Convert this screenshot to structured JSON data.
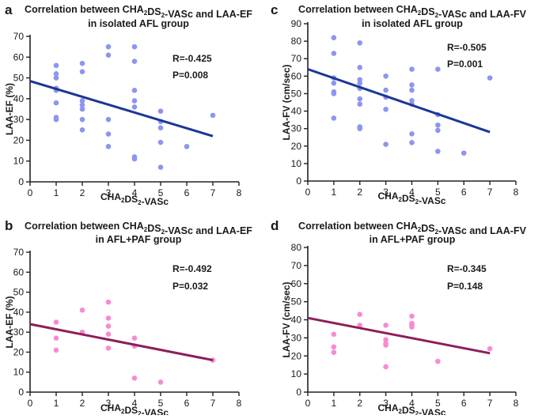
{
  "chart_data": [
    {
      "panel": "a",
      "type": "scatter",
      "title_line1": "Correlation between CHA2DS2-VASc and LAA-EF",
      "title_line2": "in isolated AFL group",
      "xlabel": "CHA2DS2-VASc",
      "ylabel": "LAA-EF (%)",
      "xlim": [
        0,
        8
      ],
      "ylim": [
        0,
        70
      ],
      "xticks": [
        0,
        1,
        2,
        3,
        4,
        5,
        6,
        7,
        8
      ],
      "yticks": [
        0,
        10,
        20,
        30,
        40,
        50,
        60,
        70
      ],
      "r_label": "R=-0.425",
      "p_label": "P=0.008",
      "point_color": "#8c96ee",
      "line_color": "#1a3699",
      "fit_line": {
        "x": [
          0,
          7
        ],
        "y": [
          48.5,
          22
        ]
      },
      "points": [
        {
          "x": 1,
          "y": 56
        },
        {
          "x": 1,
          "y": 52
        },
        {
          "x": 1,
          "y": 50
        },
        {
          "x": 1,
          "y": 45
        },
        {
          "x": 1,
          "y": 44
        },
        {
          "x": 1,
          "y": 38
        },
        {
          "x": 1,
          "y": 31
        },
        {
          "x": 1,
          "y": 30
        },
        {
          "x": 2,
          "y": 57
        },
        {
          "x": 2,
          "y": 53
        },
        {
          "x": 2,
          "y": 39
        },
        {
          "x": 2,
          "y": 37
        },
        {
          "x": 2,
          "y": 35
        },
        {
          "x": 2,
          "y": 30
        },
        {
          "x": 2,
          "y": 25
        },
        {
          "x": 3,
          "y": 65
        },
        {
          "x": 3,
          "y": 61
        },
        {
          "x": 3,
          "y": 30
        },
        {
          "x": 3,
          "y": 23
        },
        {
          "x": 3,
          "y": 17
        },
        {
          "x": 4,
          "y": 65
        },
        {
          "x": 4,
          "y": 58
        },
        {
          "x": 4,
          "y": 44
        },
        {
          "x": 4,
          "y": 39
        },
        {
          "x": 4,
          "y": 36
        },
        {
          "x": 4,
          "y": 12
        },
        {
          "x": 4,
          "y": 11
        },
        {
          "x": 5,
          "y": 34
        },
        {
          "x": 5,
          "y": 29
        },
        {
          "x": 5,
          "y": 26
        },
        {
          "x": 5,
          "y": 19
        },
        {
          "x": 5,
          "y": 7
        },
        {
          "x": 6,
          "y": 17
        },
        {
          "x": 7,
          "y": 32
        }
      ]
    },
    {
      "panel": "c",
      "type": "scatter",
      "title_line1": "Correlation between CHA2DS2-VASc and LAA-FV",
      "title_line2": "in isolated AFL group",
      "xlabel": "CHA2DS2-VASc",
      "ylabel": "LAA-FV (cm/sec)",
      "xlim": [
        0,
        8
      ],
      "ylim": [
        0,
        90
      ],
      "xticks": [
        0,
        1,
        2,
        3,
        4,
        5,
        6,
        7,
        8
      ],
      "yticks": [
        0,
        10,
        20,
        30,
        40,
        50,
        60,
        70,
        80,
        90
      ],
      "r_label": "R=-0.505",
      "p_label": "P=0.001",
      "point_color": "#8c96ee",
      "line_color": "#1a3699",
      "fit_line": {
        "x": [
          0,
          7
        ],
        "y": [
          64,
          28
        ]
      },
      "points": [
        {
          "x": 1,
          "y": 82
        },
        {
          "x": 1,
          "y": 73
        },
        {
          "x": 1,
          "y": 59
        },
        {
          "x": 1,
          "y": 56
        },
        {
          "x": 1,
          "y": 51
        },
        {
          "x": 1,
          "y": 50
        },
        {
          "x": 1,
          "y": 36
        },
        {
          "x": 2,
          "y": 79
        },
        {
          "x": 2,
          "y": 65
        },
        {
          "x": 2,
          "y": 58
        },
        {
          "x": 2,
          "y": 56
        },
        {
          "x": 2,
          "y": 53
        },
        {
          "x": 2,
          "y": 47
        },
        {
          "x": 2,
          "y": 44
        },
        {
          "x": 2,
          "y": 31
        },
        {
          "x": 2,
          "y": 30
        },
        {
          "x": 3,
          "y": 60
        },
        {
          "x": 3,
          "y": 52
        },
        {
          "x": 3,
          "y": 48
        },
        {
          "x": 3,
          "y": 41
        },
        {
          "x": 3,
          "y": 21
        },
        {
          "x": 4,
          "y": 64
        },
        {
          "x": 4,
          "y": 55
        },
        {
          "x": 4,
          "y": 52
        },
        {
          "x": 4,
          "y": 46
        },
        {
          "x": 4,
          "y": 44
        },
        {
          "x": 4,
          "y": 27
        },
        {
          "x": 4,
          "y": 22
        },
        {
          "x": 5,
          "y": 64
        },
        {
          "x": 5,
          "y": 38
        },
        {
          "x": 5,
          "y": 32
        },
        {
          "x": 5,
          "y": 29
        },
        {
          "x": 5,
          "y": 17
        },
        {
          "x": 6,
          "y": 16
        },
        {
          "x": 7,
          "y": 59
        }
      ]
    },
    {
      "panel": "b",
      "type": "scatter",
      "title_line1": "Correlation between CHA2DS2-VASc and LAA-EF",
      "title_line2": "in AFL+PAF group",
      "xlabel": "CHA2DS2-VASc",
      "ylabel": "LAA-EF (%)",
      "xlim": [
        0,
        8
      ],
      "ylim": [
        0,
        70
      ],
      "xticks": [
        0,
        1,
        2,
        3,
        4,
        5,
        6,
        7,
        8
      ],
      "yticks": [
        0,
        10,
        20,
        30,
        40,
        50,
        60,
        70
      ],
      "r_label": "R=-0.492",
      "p_label": "P=0.032",
      "point_color": "#f58cd2",
      "line_color": "#8c1e5a",
      "fit_line": {
        "x": [
          0,
          7
        ],
        "y": [
          34,
          16
        ]
      },
      "points": [
        {
          "x": 1,
          "y": 35
        },
        {
          "x": 1,
          "y": 27
        },
        {
          "x": 1,
          "y": 21
        },
        {
          "x": 2,
          "y": 41
        },
        {
          "x": 2,
          "y": 30
        },
        {
          "x": 3,
          "y": 45
        },
        {
          "x": 3,
          "y": 37
        },
        {
          "x": 3,
          "y": 33
        },
        {
          "x": 3,
          "y": 29
        },
        {
          "x": 3,
          "y": 22
        },
        {
          "x": 4,
          "y": 27
        },
        {
          "x": 4,
          "y": 23
        },
        {
          "x": 4,
          "y": 7
        },
        {
          "x": 5,
          "y": 5
        },
        {
          "x": 7,
          "y": 16
        }
      ]
    },
    {
      "panel": "d",
      "type": "scatter",
      "title_line1": "Correlation between CHA2DS2-VASc and LAA-FV",
      "title_line2": "in AFL+PAF group",
      "xlabel": "CHA2DS2-VASc",
      "ylabel": "LAA-FV (cm/sec)",
      "xlim": [
        0,
        8
      ],
      "ylim": [
        0,
        80
      ],
      "xticks": [
        0,
        1,
        2,
        3,
        4,
        5,
        6,
        7,
        8
      ],
      "yticks": [
        0,
        10,
        20,
        30,
        40,
        50,
        60,
        70,
        80
      ],
      "r_label": "R=-0.345",
      "p_label": "P=0.148",
      "point_color": "#f58cd2",
      "line_color": "#8c1e5a",
      "fit_line": {
        "x": [
          0,
          7
        ],
        "y": [
          41,
          21.5
        ]
      },
      "points": [
        {
          "x": 1,
          "y": 32
        },
        {
          "x": 1,
          "y": 25
        },
        {
          "x": 1,
          "y": 22
        },
        {
          "x": 2,
          "y": 43
        },
        {
          "x": 2,
          "y": 37
        },
        {
          "x": 3,
          "y": 37
        },
        {
          "x": 3,
          "y": 29
        },
        {
          "x": 3,
          "y": 27
        },
        {
          "x": 3,
          "y": 26
        },
        {
          "x": 3,
          "y": 14
        },
        {
          "x": 4,
          "y": 42
        },
        {
          "x": 4,
          "y": 38
        },
        {
          "x": 4,
          "y": 37
        },
        {
          "x": 4,
          "y": 36
        },
        {
          "x": 5,
          "y": 17
        },
        {
          "x": 7,
          "y": 24
        }
      ]
    }
  ]
}
